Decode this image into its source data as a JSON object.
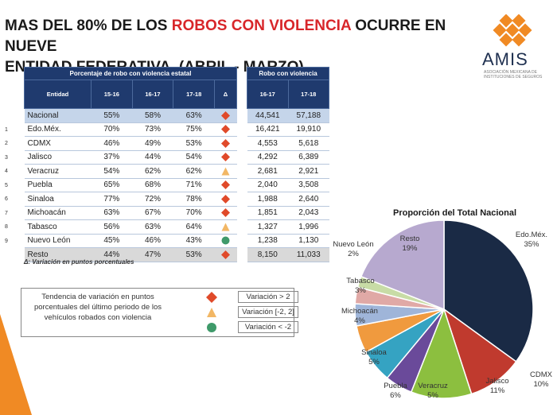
{
  "title": {
    "line1_a": "MAS  DEL 80% DE LOS ",
    "line1_hl": "ROBOS CON VIOLENCIA",
    "line1_b": " OCURRE EN NUEVE",
    "line2": "ENTIDAD FEDERATIVA, (ABRIL  - MARZO)"
  },
  "logo": {
    "name": "AMIS",
    "subtitle": "ASOCIACIÓN MEXICANA DE INSTITUCIONES DE SEGUROS",
    "color": "#f08a24"
  },
  "table_pct": {
    "header": "Porcentaje de robo con violencia estatal",
    "columns": [
      "Entidad",
      "15-16",
      "16-17",
      "17-18",
      "Δ"
    ]
  },
  "table_count": {
    "header": "Robo con violencia",
    "columns": [
      "16-17",
      "17-18"
    ]
  },
  "rows": [
    {
      "num": "",
      "entidad": "Nacional",
      "p1516": "55%",
      "p1617": "58%",
      "p1718": "63%",
      "trend": "up",
      "c1617": "44,541",
      "c1718": "57,188"
    },
    {
      "num": "1",
      "entidad": "Edo.Méx.",
      "p1516": "70%",
      "p1617": "73%",
      "p1718": "75%",
      "trend": "up",
      "c1617": "16,421",
      "c1718": "19,910"
    },
    {
      "num": "2",
      "entidad": "CDMX",
      "p1516": "46%",
      "p1617": "49%",
      "p1718": "53%",
      "trend": "up",
      "c1617": "4,553",
      "c1718": "5,618"
    },
    {
      "num": "3",
      "entidad": "Jalisco",
      "p1516": "37%",
      "p1617": "44%",
      "p1718": "54%",
      "trend": "up",
      "c1617": "4,292",
      "c1718": "6,389"
    },
    {
      "num": "4",
      "entidad": "Veracruz",
      "p1516": "54%",
      "p1617": "62%",
      "p1718": "62%",
      "trend": "flat",
      "c1617": "2,681",
      "c1718": "2,921"
    },
    {
      "num": "5",
      "entidad": "Puebla",
      "p1516": "65%",
      "p1617": "68%",
      "p1718": "71%",
      "trend": "up",
      "c1617": "2,040",
      "c1718": "3,508"
    },
    {
      "num": "6",
      "entidad": "Sinaloa",
      "p1516": "77%",
      "p1617": "72%",
      "p1718": "78%",
      "trend": "up",
      "c1617": "1,988",
      "c1718": "2,640"
    },
    {
      "num": "7",
      "entidad": "Michoacán",
      "p1516": "63%",
      "p1617": "67%",
      "p1718": "70%",
      "trend": "up",
      "c1617": "1,851",
      "c1718": "2,043"
    },
    {
      "num": "8",
      "entidad": "Tabasco",
      "p1516": "56%",
      "p1617": "63%",
      "p1718": "64%",
      "trend": "flat",
      "c1617": "1,327",
      "c1718": "1,996"
    },
    {
      "num": "9",
      "entidad": "Nuevo León",
      "p1516": "45%",
      "p1617": "46%",
      "p1718": "43%",
      "trend": "down",
      "c1617": "1,238",
      "c1718": "1,130"
    },
    {
      "num": "",
      "entidad": "Resto",
      "p1516": "44%",
      "p1617": "47%",
      "p1718": "53%",
      "trend": "up",
      "c1617": "8,150",
      "c1718": "11,033"
    }
  ],
  "note": "Δ: Variación en puntos porcentuales",
  "legend": {
    "text": "Tendencia de variación en puntos porcentuales del último periodo de los vehículos robados con violencia",
    "items": [
      {
        "label": "Variación > 2",
        "shape": "diamond",
        "color": "#e04a2a"
      },
      {
        "label": "Variación [-2, 2]",
        "shape": "triangle",
        "color": "#f2b765"
      },
      {
        "label": "Variación < -2",
        "shape": "circle",
        "color": "#3f9a6a"
      }
    ]
  },
  "colors": {
    "header_bg": "#1f3a6e",
    "up": "#e04a2a",
    "flat": "#f2b765",
    "down": "#3f9a6a"
  },
  "chart_data": {
    "type": "pie",
    "title": "Proporción del Total Nacional",
    "slices": [
      {
        "name": "Edo.Méx.",
        "label": "35%",
        "value": 35,
        "color": "#1a2a45"
      },
      {
        "name": "CDMX",
        "label": "10%",
        "value": 10,
        "color": "#c03a2e"
      },
      {
        "name": "Jalisco",
        "label": "11%",
        "value": 11,
        "color": "#8cbf3f"
      },
      {
        "name": "Veracruz",
        "label": "5%",
        "value": 5,
        "color": "#6a4a9a"
      },
      {
        "name": "Puebla",
        "label": "6%",
        "value": 6,
        "color": "#35a3c2"
      },
      {
        "name": "Sinaloa",
        "label": "5%",
        "value": 5,
        "color": "#f09a3e"
      },
      {
        "name": "Michoacán",
        "label": "4%",
        "value": 4,
        "color": "#9fb5d9"
      },
      {
        "name": "Tabasco",
        "label": "3%",
        "value": 3,
        "color": "#e0a9a6"
      },
      {
        "name": "Nuevo León",
        "label": "2%",
        "value": 2,
        "color": "#c8dca6"
      },
      {
        "name": "Resto",
        "label": "19%",
        "value": 19,
        "color": "#b7a9cf"
      }
    ]
  }
}
